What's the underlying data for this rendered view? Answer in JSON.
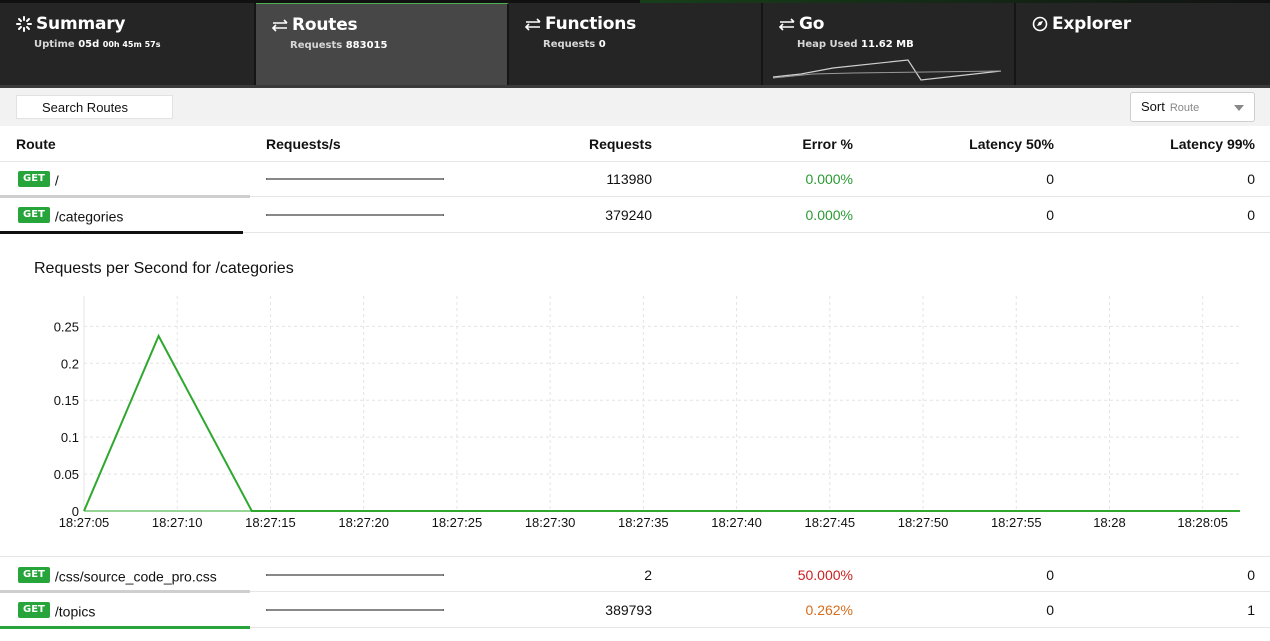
{
  "tabs": [
    {
      "id": "summary",
      "label": "Summary",
      "sub_label": "Uptime",
      "sub_value": "05d",
      "sub_extra": "00h 45m 57s",
      "icon": "loading-icon",
      "active": false
    },
    {
      "id": "routes",
      "label": "Routes",
      "sub_label": "Requests",
      "sub_value": "883015",
      "icon": "exchange-icon",
      "active": true
    },
    {
      "id": "functions",
      "label": "Functions",
      "sub_label": "Requests",
      "sub_value": "0",
      "icon": "exchange-icon",
      "active": false
    },
    {
      "id": "go",
      "label": "Go",
      "sub_label": "Heap Used",
      "sub_value": "11.62 MB",
      "icon": "exchange-icon",
      "active": false
    },
    {
      "id": "explorer",
      "label": "Explorer",
      "icon": "compass-icon",
      "active": false
    }
  ],
  "toolbar": {
    "search_label": "Search Routes",
    "sort_label": "Sort",
    "sort_value": "Route"
  },
  "table": {
    "headers": [
      "Route",
      "Requests/s",
      "Requests",
      "Error %",
      "Latency 50%",
      "Latency 99%"
    ],
    "rows_top": [
      {
        "method": "GET",
        "path": "/",
        "requests": "113980",
        "error": "0.000%",
        "error_color": "#2a9a33",
        "lat50": "0",
        "lat99": "0"
      },
      {
        "method": "GET",
        "path": "/categories",
        "requests": "379240",
        "error": "0.000%",
        "error_color": "#2a9a33",
        "lat50": "0",
        "lat99": "0"
      }
    ],
    "rows_bottom": [
      {
        "method": "GET",
        "path": "/css/source_code_pro.css",
        "requests": "2",
        "error": "50.000%",
        "error_color": "#cc1f1f",
        "lat50": "0",
        "lat99": "0"
      },
      {
        "method": "GET",
        "path": "/topics",
        "requests": "389793",
        "error": "0.262%",
        "error_color": "#d56d1c",
        "lat50": "0",
        "lat99": "1"
      }
    ]
  },
  "chart_title": "Requests per Second for /categories",
  "chart_data": {
    "type": "line",
    "title": "Requests per Second for /categories",
    "xlabel": "",
    "ylabel": "",
    "x": [
      "18:27:05",
      "18:27:09",
      "18:27:14",
      "18:27:20",
      "18:27:25",
      "18:27:30",
      "18:27:35",
      "18:27:40",
      "18:27:45",
      "18:27:50",
      "18:27:55",
      "18:28:00",
      "18:28:05",
      "18:28:07"
    ],
    "x_tick_labels": [
      "18:27:05",
      "18:27:10",
      "18:27:15",
      "18:27:20",
      "18:27:25",
      "18:27:30",
      "18:27:35",
      "18:27:40",
      "18:27:45",
      "18:27:50",
      "18:27:55",
      "18:28",
      "18:28:05"
    ],
    "series": [
      {
        "values": [
          0,
          0.237,
          0,
          0,
          0,
          0,
          0,
          0,
          0,
          0,
          0,
          0,
          0,
          0
        ]
      }
    ],
    "y_tick_labels": [
      "0",
      "0.05",
      "0.1",
      "0.15",
      "0.2",
      "0.25"
    ],
    "ylim": [
      0,
      0.25
    ],
    "line_color": "#2ea82e",
    "grid": true
  },
  "colors": {
    "accent": "#27a53a",
    "topbar_bg": "#1b1b1b",
    "active_tab_bg": "#474747"
  }
}
